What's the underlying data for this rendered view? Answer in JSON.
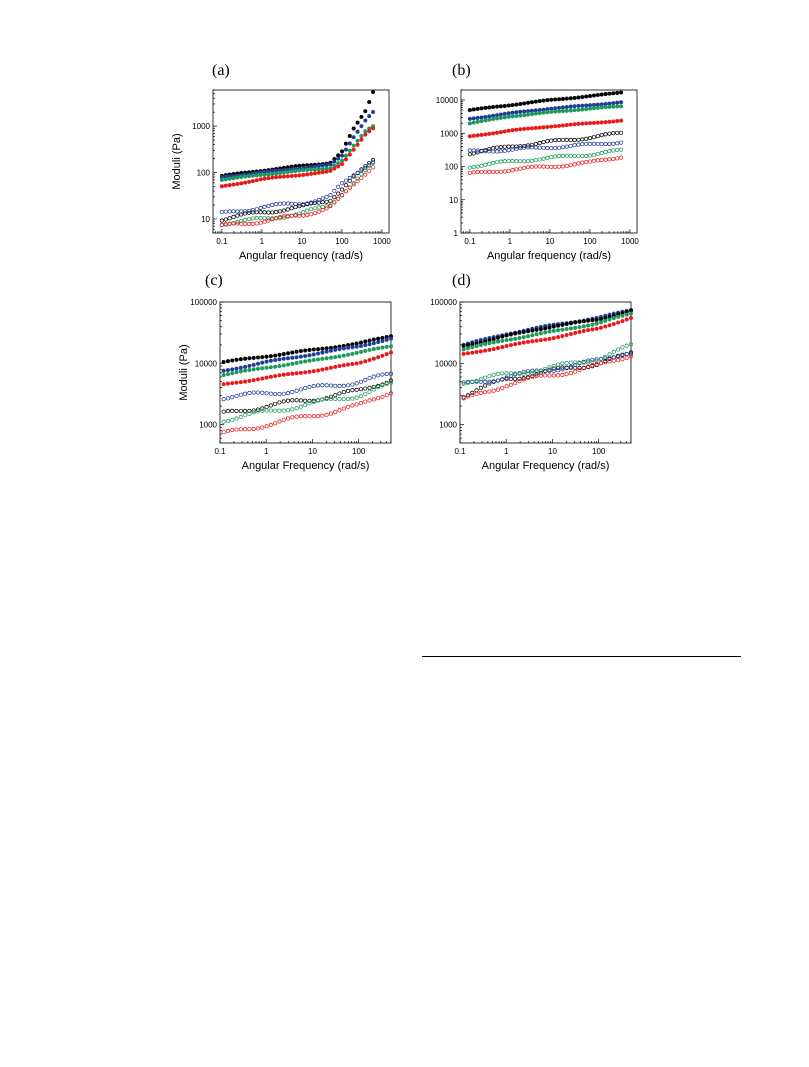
{
  "chart_data": [
    {
      "type": "scatter",
      "panel_label": "(a)",
      "xlabel": "Angular frequency (rad/s)",
      "ylabel": "Moduli (Pa)",
      "xscale": "log",
      "yscale": "log",
      "xlim": [
        0.06,
        1500
      ],
      "ylim": [
        5,
        6000
      ],
      "xticks": [
        {
          "v": 0.1,
          "label": "0.1"
        },
        {
          "v": 1,
          "label": "1"
        },
        {
          "v": 10,
          "label": "10"
        },
        {
          "v": 100,
          "label": "100"
        },
        {
          "v": 1000,
          "label": "1000"
        }
      ],
      "yticks": [
        {
          "v": 10,
          "label": "10"
        },
        {
          "v": 100,
          "label": "100"
        },
        {
          "v": 1000,
          "label": "1000"
        }
      ],
      "x_range": [
        0.1,
        600
      ],
      "series": [
        {
          "color": "#000000",
          "filled": true,
          "points": [
            [
              0.1,
              85
            ],
            [
              1,
              110
            ],
            [
              10,
              140
            ],
            [
              50,
              160
            ],
            [
              100,
              280
            ],
            [
              200,
              900
            ],
            [
              400,
              2200
            ],
            [
              600,
              5500
            ]
          ]
        },
        {
          "color": "#1f3c99",
          "filled": true,
          "points": [
            [
              0.1,
              80
            ],
            [
              1,
              100
            ],
            [
              10,
              125
            ],
            [
              50,
              145
            ],
            [
              100,
              230
            ],
            [
              200,
              600
            ],
            [
              400,
              1400
            ],
            [
              600,
              2000
            ]
          ]
        },
        {
          "color": "#1a9b5a",
          "filled": true,
          "points": [
            [
              0.1,
              70
            ],
            [
              1,
              90
            ],
            [
              10,
              110
            ],
            [
              50,
              125
            ],
            [
              100,
              180
            ],
            [
              200,
              380
            ],
            [
              400,
              800
            ],
            [
              600,
              1000
            ]
          ]
        },
        {
          "color": "#e8191a",
          "filled": true,
          "points": [
            [
              0.1,
              50
            ],
            [
              1,
              72
            ],
            [
              10,
              90
            ],
            [
              50,
              105
            ],
            [
              100,
              150
            ],
            [
              200,
              320
            ],
            [
              400,
              700
            ],
            [
              600,
              900
            ]
          ]
        },
        {
          "color": "#000000",
          "filled": false,
          "points": [
            [
              0.1,
              10
            ],
            [
              1,
              14
            ],
            [
              10,
              18
            ],
            [
              50,
              26
            ],
            [
              100,
              45
            ],
            [
              200,
              80
            ],
            [
              400,
              130
            ],
            [
              600,
              180
            ]
          ]
        },
        {
          "color": "#1f3c99",
          "filled": false,
          "points": [
            [
              0.1,
              13
            ],
            [
              1,
              18
            ],
            [
              10,
              22
            ],
            [
              50,
              30
            ],
            [
              100,
              55
            ],
            [
              200,
              90
            ],
            [
              400,
              140
            ],
            [
              600,
              180
            ]
          ]
        },
        {
          "color": "#1a9b5a",
          "filled": false,
          "points": [
            [
              0.1,
              8
            ],
            [
              1,
              10
            ],
            [
              10,
              13
            ],
            [
              50,
              20
            ],
            [
              100,
              35
            ],
            [
              200,
              60
            ],
            [
              400,
              110
            ],
            [
              600,
              150
            ]
          ]
        },
        {
          "color": "#e8191a",
          "filled": false,
          "points": [
            [
              0.1,
              7
            ],
            [
              1,
              9
            ],
            [
              10,
              12
            ],
            [
              50,
              18
            ],
            [
              100,
              30
            ],
            [
              200,
              55
            ],
            [
              400,
              100
            ],
            [
              600,
              140
            ]
          ]
        }
      ]
    },
    {
      "type": "scatter",
      "panel_label": "(b)",
      "xlabel": "Angular frequency (rad/s)",
      "ylabel": "",
      "xscale": "log",
      "yscale": "log",
      "xlim": [
        0.06,
        1500
      ],
      "ylim": [
        1,
        20000
      ],
      "xticks": [
        {
          "v": 0.1,
          "label": "0.1"
        },
        {
          "v": 1,
          "label": "1"
        },
        {
          "v": 10,
          "label": "10"
        },
        {
          "v": 100,
          "label": "100"
        },
        {
          "v": 1000,
          "label": "1000"
        }
      ],
      "yticks": [
        {
          "v": 1,
          "label": "1"
        },
        {
          "v": 10,
          "label": "10"
        },
        {
          "v": 100,
          "label": "100"
        },
        {
          "v": 1000,
          "label": "1000"
        },
        {
          "v": 10000,
          "label": "10000"
        }
      ],
      "x_range": [
        0.1,
        600
      ],
      "series": [
        {
          "color": "#000000",
          "filled": true,
          "points": [
            [
              0.1,
              5000
            ],
            [
              1,
              7000
            ],
            [
              10,
              10000
            ],
            [
              100,
              13000
            ],
            [
              600,
              17000
            ]
          ]
        },
        {
          "color": "#1f3c99",
          "filled": true,
          "points": [
            [
              0.1,
              2700
            ],
            [
              1,
              4000
            ],
            [
              10,
              5500
            ],
            [
              100,
              7000
            ],
            [
              600,
              8500
            ]
          ]
        },
        {
          "color": "#1a9b5a",
          "filled": true,
          "points": [
            [
              0.1,
              2000
            ],
            [
              1,
              3200
            ],
            [
              10,
              4300
            ],
            [
              100,
              5500
            ],
            [
              600,
              6500
            ]
          ]
        },
        {
          "color": "#e8191a",
          "filled": true,
          "points": [
            [
              0.1,
              800
            ],
            [
              1,
              1200
            ],
            [
              10,
              1600
            ],
            [
              100,
              2000
            ],
            [
              600,
              2400
            ]
          ]
        },
        {
          "color": "#000000",
          "filled": false,
          "points": [
            [
              0.1,
              250
            ],
            [
              1,
              400
            ],
            [
              10,
              550
            ],
            [
              100,
              750
            ],
            [
              600,
              1000
            ]
          ]
        },
        {
          "color": "#1f3c99",
          "filled": false,
          "points": [
            [
              0.1,
              280
            ],
            [
              1,
              320
            ],
            [
              10,
              380
            ],
            [
              100,
              450
            ],
            [
              600,
              550
            ]
          ]
        },
        {
          "color": "#1a9b5a",
          "filled": false,
          "points": [
            [
              0.1,
              100
            ],
            [
              1,
              140
            ],
            [
              10,
              180
            ],
            [
              100,
              230
            ],
            [
              600,
              300
            ]
          ]
        },
        {
          "color": "#e8191a",
          "filled": false,
          "points": [
            [
              0.1,
              60
            ],
            [
              1,
              80
            ],
            [
              10,
              100
            ],
            [
              100,
              130
            ],
            [
              600,
              200
            ]
          ]
        }
      ]
    },
    {
      "type": "scatter",
      "panel_label": "(c)",
      "xlabel": "Angular Frequency (rad/s)",
      "ylabel": "Moduli (Pa)",
      "xscale": "log",
      "yscale": "log",
      "xlim": [
        0.1,
        500
      ],
      "ylim": [
        500,
        100000
      ],
      "xticks": [
        {
          "v": 0.1,
          "label": "0.1"
        },
        {
          "v": 1,
          "label": "1"
        },
        {
          "v": 10,
          "label": "10"
        },
        {
          "v": 100,
          "label": "100"
        }
      ],
      "yticks": [
        {
          "v": 1000,
          "label": "1000"
        },
        {
          "v": 10000,
          "label": "10000"
        },
        {
          "v": 100000,
          "label": "100000"
        }
      ],
      "x_range": [
        0.12,
        500
      ],
      "series": [
        {
          "color": "#000000",
          "filled": true,
          "points": [
            [
              0.12,
              10500
            ],
            [
              1,
              13000
            ],
            [
              10,
              16500
            ],
            [
              100,
              21000
            ],
            [
              500,
              28000
            ]
          ]
        },
        {
          "color": "#1f3c99",
          "filled": true,
          "points": [
            [
              0.12,
              7500
            ],
            [
              1,
              10500
            ],
            [
              10,
              14000
            ],
            [
              100,
              19000
            ],
            [
              500,
              25000
            ]
          ]
        },
        {
          "color": "#1a9b5a",
          "filled": true,
          "points": [
            [
              0.12,
              6500
            ],
            [
              1,
              8500
            ],
            [
              10,
              11000
            ],
            [
              100,
              15000
            ],
            [
              500,
              19000
            ]
          ]
        },
        {
          "color": "#e8191a",
          "filled": true,
          "points": [
            [
              0.12,
              4500
            ],
            [
              1,
              5800
            ],
            [
              10,
              7500
            ],
            [
              100,
              10000
            ],
            [
              500,
              15000
            ]
          ]
        },
        {
          "color": "#1f3c99",
          "filled": false,
          "points": [
            [
              0.12,
              2800
            ],
            [
              1,
              3200
            ],
            [
              10,
              3900
            ],
            [
              100,
              5000
            ],
            [
              500,
              6500
            ]
          ]
        },
        {
          "color": "#000000",
          "filled": false,
          "points": [
            [
              0.12,
              1500
            ],
            [
              1,
              2000
            ],
            [
              10,
              2600
            ],
            [
              100,
              3500
            ],
            [
              500,
              5500
            ]
          ]
        },
        {
          "color": "#1a9b5a",
          "filled": false,
          "points": [
            [
              0.12,
              1200
            ],
            [
              1,
              1600
            ],
            [
              10,
              2200
            ],
            [
              100,
              3000
            ],
            [
              500,
              4500
            ]
          ]
        },
        {
          "color": "#e8191a",
          "filled": false,
          "points": [
            [
              0.12,
              700
            ],
            [
              1,
              1000
            ],
            [
              10,
              1400
            ],
            [
              100,
              2000
            ],
            [
              500,
              3500
            ]
          ]
        }
      ]
    },
    {
      "type": "scatter",
      "panel_label": "(d)",
      "xlabel": "Angular Frequency (rad/s)",
      "ylabel": "",
      "xscale": "log",
      "yscale": "log",
      "xlim": [
        0.1,
        500
      ],
      "ylim": [
        500,
        100000
      ],
      "xticks": [
        {
          "v": 0.1,
          "label": "0.1"
        },
        {
          "v": 1,
          "label": "1"
        },
        {
          "v": 10,
          "label": "10"
        },
        {
          "v": 100,
          "label": "100"
        }
      ],
      "yticks": [
        {
          "v": 1000,
          "label": "1000"
        },
        {
          "v": 10000,
          "label": "10000"
        },
        {
          "v": 100000,
          "label": "100000"
        }
      ],
      "x_range": [
        0.12,
        500
      ],
      "series": [
        {
          "color": "#1f3c99",
          "filled": true,
          "points": [
            [
              0.12,
              20000
            ],
            [
              1,
              30000
            ],
            [
              10,
              42000
            ],
            [
              100,
              55000
            ],
            [
              500,
              75000
            ]
          ]
        },
        {
          "color": "#000000",
          "filled": true,
          "points": [
            [
              0.12,
              19000
            ],
            [
              1,
              28000
            ],
            [
              10,
              40000
            ],
            [
              100,
              52000
            ],
            [
              500,
              72000
            ]
          ]
        },
        {
          "color": "#1a9b5a",
          "filled": true,
          "points": [
            [
              0.12,
              17000
            ],
            [
              1,
              24000
            ],
            [
              10,
              33000
            ],
            [
              100,
              45000
            ],
            [
              500,
              65000
            ]
          ]
        },
        {
          "color": "#e8191a",
          "filled": true,
          "points": [
            [
              0.12,
              14000
            ],
            [
              1,
              19000
            ],
            [
              10,
              26000
            ],
            [
              100,
              37000
            ],
            [
              500,
              55000
            ]
          ]
        },
        {
          "color": "#000000",
          "filled": false,
          "points": [
            [
              0.12,
              3000
            ],
            [
              1,
              5500
            ],
            [
              10,
              7500
            ],
            [
              100,
              10000
            ],
            [
              500,
              14000
            ]
          ]
        },
        {
          "color": "#1f3c99",
          "filled": false,
          "points": [
            [
              0.12,
              4500
            ],
            [
              1,
              6000
            ],
            [
              10,
              8000
            ],
            [
              100,
              11000
            ],
            [
              500,
              16000
            ]
          ]
        },
        {
          "color": "#1a9b5a",
          "filled": false,
          "points": [
            [
              0.12,
              5000
            ],
            [
              1,
              6500
            ],
            [
              10,
              8500
            ],
            [
              100,
              12000
            ],
            [
              500,
              19000
            ]
          ]
        },
        {
          "color": "#e8191a",
          "filled": false,
          "points": [
            [
              0.12,
              2500
            ],
            [
              1,
              4500
            ],
            [
              10,
              6500
            ],
            [
              100,
              9000
            ],
            [
              500,
              14000
            ]
          ]
        }
      ]
    }
  ]
}
